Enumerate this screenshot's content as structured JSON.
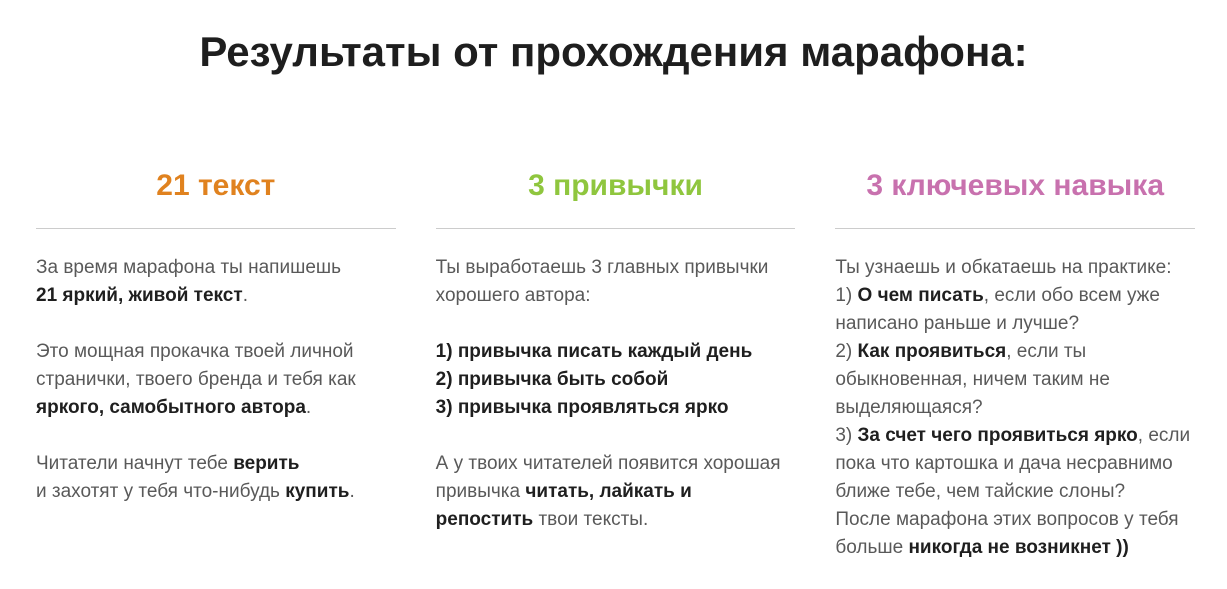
{
  "section": {
    "title": "Результаты от прохождения марафона:",
    "title_color": "#1e1e1e",
    "body_text_color": "#595959",
    "bold_text_color": "#1f1f1f",
    "divider_color": "#cccccc"
  },
  "columns": [
    {
      "heading": "21 текст",
      "color": "#e0821f",
      "paragraphs": [
        [
          [
            {
              "t": "За время марафона ты напишешь"
            }
          ],
          [
            {
              "t": "21 яркий, живой текст",
              "b": 1
            },
            {
              "t": "."
            }
          ]
        ],
        [
          [
            {
              "t": "Это мощная прокачка твоей личной"
            }
          ],
          [
            {
              "t": "странички, твоего бренда и тебя как"
            }
          ],
          [
            {
              "t": "яркого, самобытного автора",
              "b": 1
            },
            {
              "t": "."
            }
          ]
        ],
        [
          [
            {
              "t": "Читатели начнут тебе "
            },
            {
              "t": "верить",
              "b": 1
            }
          ],
          [
            {
              "t": "и захотят у тебя что-нибудь "
            },
            {
              "t": "купить",
              "b": 1
            },
            {
              "t": "."
            }
          ]
        ]
      ]
    },
    {
      "heading": "3 привычки",
      "color": "#8fc63e",
      "paragraphs": [
        [
          [
            {
              "t": "Ты выработаешь 3 главных привычки"
            }
          ],
          [
            {
              "t": "хорошего автора:"
            }
          ]
        ],
        [
          [
            {
              "t": "1) привычка писать каждый день",
              "b": 1
            }
          ],
          [
            {
              "t": "2) привычка быть собой",
              "b": 1
            }
          ],
          [
            {
              "t": "3) привычка проявляться ярко",
              "b": 1
            }
          ]
        ],
        [
          [
            {
              "t": "А у твоих читателей появится хорошая"
            }
          ],
          [
            {
              "t": "привычка "
            },
            {
              "t": "читать, лайкать и",
              "b": 1
            }
          ],
          [
            {
              "t": "репостить",
              "b": 1
            },
            {
              "t": " твои тексты."
            }
          ]
        ]
      ]
    },
    {
      "heading": "3 ключевых навыка",
      "color": "#c871ae",
      "paragraphs": [
        [
          [
            {
              "t": "Ты узнаешь и обкатаешь на практике:"
            }
          ],
          [
            {
              "t": "1) "
            },
            {
              "t": "О чем писать",
              "b": 1
            },
            {
              "t": ", если обо всем уже"
            }
          ],
          [
            {
              "t": "написано раньше и лучше?"
            }
          ],
          [
            {
              "t": "2) "
            },
            {
              "t": "Как проявиться",
              "b": 1
            },
            {
              "t": ", если ты"
            }
          ],
          [
            {
              "t": "обыкновенная, ничем таким не"
            }
          ],
          [
            {
              "t": "выделяющаяся?"
            }
          ],
          [
            {
              "t": "3) "
            },
            {
              "t": "За счет чего проявиться ярко",
              "b": 1
            },
            {
              "t": ", если"
            }
          ],
          [
            {
              "t": "пока что картошка и дача несравнимо"
            }
          ],
          [
            {
              "t": "ближе тебе, чем тайские слоны?"
            }
          ],
          [
            {
              "t": "После марафона этих вопросов у тебя"
            }
          ],
          [
            {
              "t": "больше "
            },
            {
              "t": "никогда не возникнет ))",
              "b": 1
            }
          ]
        ]
      ]
    }
  ]
}
